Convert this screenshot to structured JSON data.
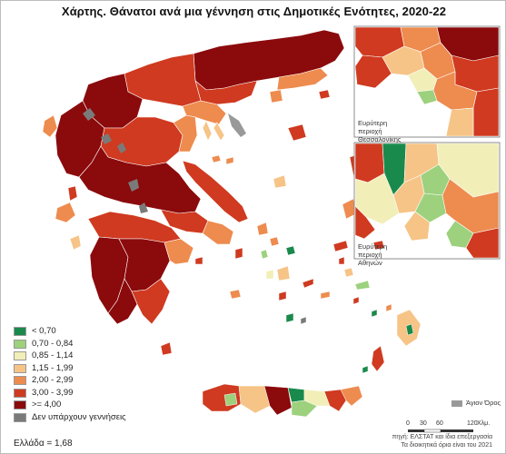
{
  "title": "Χάρτης. Θάνατοι ανά μια γέννηση στις Δημοτικές Ενότητες, 2020-22",
  "legend": [
    {
      "label": "< 0,70",
      "color": "#1a8a4c"
    },
    {
      "label": "0,70 - 0,84",
      "color": "#9dd17e"
    },
    {
      "label": "0,85 - 1,14",
      "color": "#f2eeb8"
    },
    {
      "label": "1,15 - 1,99",
      "color": "#f6c486"
    },
    {
      "label": "2,00 - 2,99",
      "color": "#ee8b4e"
    },
    {
      "label": "3,00 - 3,99",
      "color": "#cf3a20"
    },
    {
      "label": ">= 4,00",
      "color": "#8b0a0c"
    },
    {
      "label": "Δεν υπάρχουν γεννήσεις",
      "color": "#7a7a7a"
    }
  ],
  "greece_value": "Ελλάδα = 1,68",
  "insets": {
    "thessaloniki": "Ευρύτερη περιοχή Θεσσαλονίκης",
    "athens": "Ευρύτερη περιοχή Αθηνών"
  },
  "mount_athos": {
    "label": "Άγιον Όρος",
    "color": "#999999"
  },
  "scale_bar": {
    "ticks": [
      "0",
      "30",
      "60",
      "120"
    ],
    "unit": "Χλμ."
  },
  "source": {
    "line1": "πηγή: ΕΛΣΤΑΤ και ίδια επεξεργασία",
    "line2": "Τα διοικητικά όρια είναι του 2021"
  },
  "colors": {
    "sea": "#ffffff",
    "border": "#ffffff",
    "inset_frame": "#8c8c8c"
  }
}
